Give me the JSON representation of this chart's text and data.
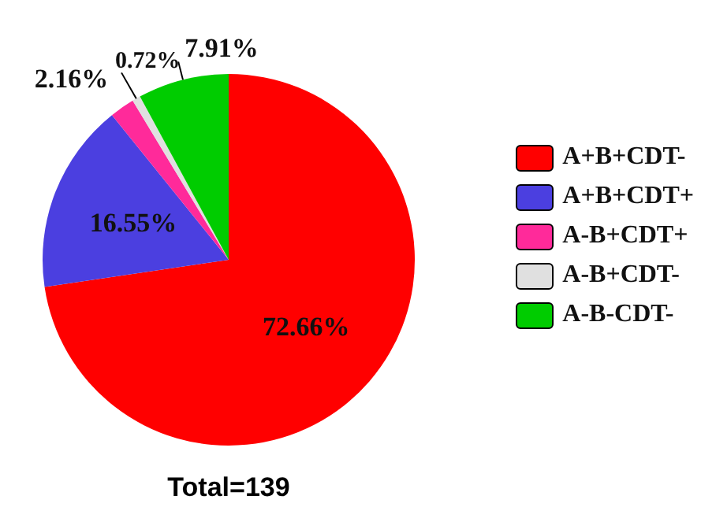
{
  "chart_data": {
    "type": "pie",
    "categories": [
      "A+B+CDT-",
      "A+B+CDT+",
      "A-B+CDT+",
      "A-B+CDT-",
      "A-B-CDT-"
    ],
    "values": [
      72.66,
      16.55,
      2.16,
      0.72,
      7.91
    ],
    "colors": [
      "#ff0000",
      "#4b3fe0",
      "#ff2a9a",
      "#e0e0e0",
      "#00cc00"
    ],
    "value_labels": [
      "72.66%",
      "16.55%",
      "2.16%",
      "0.72%",
      "7.91%"
    ],
    "legend": "right",
    "annotations": [
      "Total=139"
    ]
  }
}
